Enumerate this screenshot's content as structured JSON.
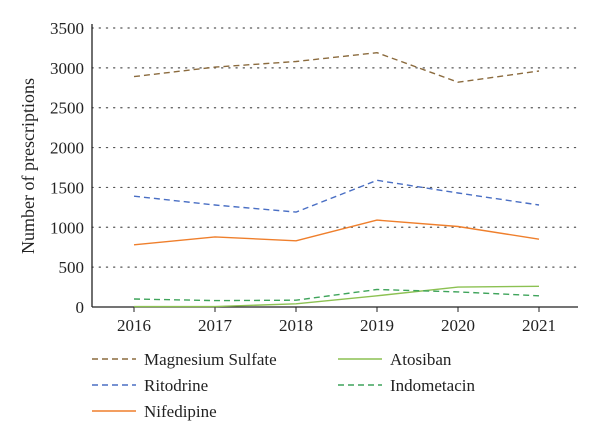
{
  "chart_data": {
    "type": "line",
    "title": "",
    "xlabel": "",
    "ylabel": "Number of prescriptions",
    "categories": [
      "2016",
      "2017",
      "2018",
      "2019",
      "2020",
      "2021"
    ],
    "ylim": [
      0,
      3500
    ],
    "yticks": [
      "0",
      "500",
      "1000",
      "1500",
      "2000",
      "2500",
      "3000",
      "3500"
    ],
    "grid": "horizontal dotted",
    "legend_position": "bottom",
    "series": [
      {
        "name": "Magnesium Sulfate",
        "color": "#8B6B3E",
        "dash": "dashed",
        "values": [
          2890,
          3010,
          3080,
          3190,
          2820,
          2960
        ]
      },
      {
        "name": "Ritodrine",
        "color": "#4A6FC4",
        "dash": "dashed",
        "values": [
          1390,
          1280,
          1190,
          1590,
          1430,
          1280
        ]
      },
      {
        "name": "Nifedipine",
        "color": "#EF7F2C",
        "dash": "solid",
        "values": [
          780,
          880,
          830,
          1090,
          1010,
          850
        ]
      },
      {
        "name": "Atosiban",
        "color": "#8CC152",
        "dash": "solid",
        "values": [
          5,
          5,
          40,
          140,
          250,
          260
        ]
      },
      {
        "name": "Indometacin",
        "color": "#3FA45B",
        "dash": "dashed",
        "values": [
          100,
          80,
          85,
          220,
          190,
          140
        ]
      }
    ]
  }
}
